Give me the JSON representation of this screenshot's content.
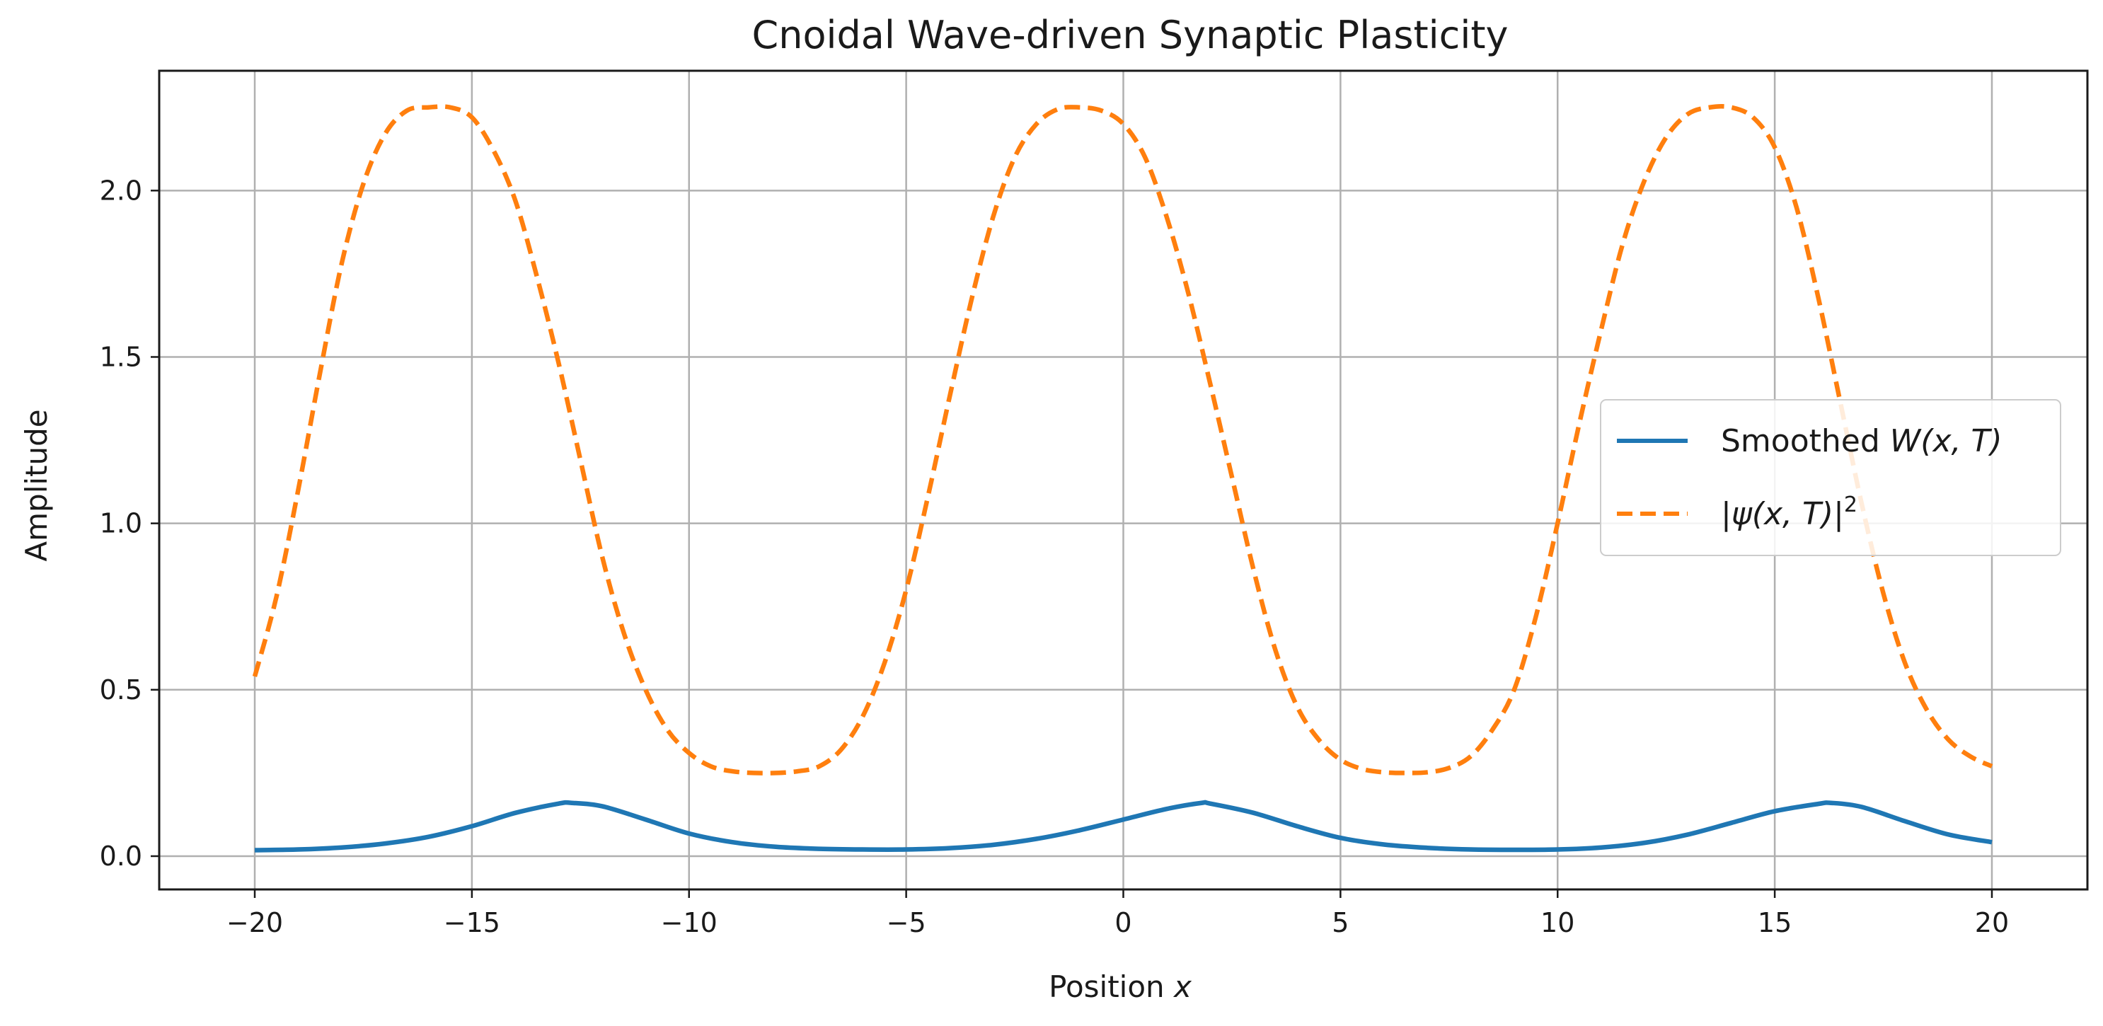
{
  "chart_data": {
    "type": "line",
    "title": "Cnoidal Wave-driven Synaptic Plasticity",
    "xlabel_text": "Position ",
    "xlabel_var": "x",
    "ylabel": "Amplitude",
    "xlim": [
      -22.2,
      22.2
    ],
    "ylim": [
      -0.1,
      2.36
    ],
    "xticks": [
      -20,
      -15,
      -10,
      -5,
      0,
      5,
      10,
      15,
      20
    ],
    "xtick_labels": [
      "−20",
      "−15",
      "−10",
      "−5",
      "0",
      "5",
      "10",
      "15",
      "20"
    ],
    "yticks": [
      0.0,
      0.5,
      1.0,
      1.5,
      2.0
    ],
    "ytick_labels": [
      "0.0",
      "0.5",
      "1.0",
      "1.5",
      "2.0"
    ],
    "grid": true,
    "legend_position": "center-right",
    "series": [
      {
        "name": "Smoothed W(x, T)",
        "legend_prefix": "Smoothed ",
        "legend_math": "W(x, T)",
        "color": "#1f77b4",
        "style": "solid",
        "x": [
          -20,
          -19,
          -18,
          -17,
          -16,
          -15,
          -14,
          -13,
          -12.7,
          -12,
          -11,
          -10,
          -9,
          -8,
          -7,
          -6,
          -5,
          -4,
          -3,
          -2,
          -1,
          0,
          1,
          1.8,
          2,
          3,
          4,
          5,
          6,
          7,
          8,
          9,
          10,
          11,
          12,
          13,
          14,
          15,
          16,
          16.3,
          17,
          18,
          19,
          20
        ],
        "values": [
          0.018,
          0.02,
          0.026,
          0.038,
          0.058,
          0.09,
          0.13,
          0.158,
          0.16,
          0.15,
          0.11,
          0.068,
          0.042,
          0.028,
          0.022,
          0.02,
          0.02,
          0.024,
          0.034,
          0.052,
          0.078,
          0.11,
          0.142,
          0.16,
          0.158,
          0.13,
          0.09,
          0.055,
          0.035,
          0.025,
          0.02,
          0.019,
          0.02,
          0.026,
          0.04,
          0.065,
          0.1,
          0.135,
          0.157,
          0.16,
          0.148,
          0.105,
          0.065,
          0.042
        ]
      },
      {
        "name": "|ψ(x, T)|²",
        "legend_math": "|ψ(x, T)|",
        "legend_sup": "2",
        "color": "#ff7f0e",
        "style": "dashed",
        "x": [
          -20,
          -19.5,
          -19,
          -18.5,
          -18,
          -17.5,
          -17,
          -16.5,
          -16,
          -15.5,
          -15,
          -14.5,
          -14,
          -13.5,
          -13,
          -12.5,
          -12,
          -11.5,
          -11,
          -10.5,
          -10,
          -9.5,
          -9,
          -8.5,
          -8,
          -7.5,
          -7,
          -6.5,
          -6,
          -5.5,
          -5,
          -4.5,
          -4,
          -3.5,
          -3,
          -2.5,
          -2,
          -1.5,
          -1,
          -0.5,
          0,
          0.5,
          1,
          1.5,
          2,
          2.5,
          3,
          3.5,
          4,
          4.5,
          5,
          5.5,
          6,
          6.5,
          7,
          7.5,
          8,
          8.5,
          9,
          9.5,
          10,
          10.5,
          11,
          11.5,
          12,
          12.5,
          13,
          13.5,
          14,
          14.5,
          15,
          15.5,
          16,
          16.5,
          17,
          17.5,
          18,
          18.5,
          19,
          19.5,
          20
        ],
        "values": [
          0.54,
          0.78,
          1.1,
          1.45,
          1.78,
          2.02,
          2.17,
          2.24,
          2.25,
          2.25,
          2.22,
          2.12,
          1.97,
          1.74,
          1.48,
          1.19,
          0.9,
          0.67,
          0.5,
          0.38,
          0.31,
          0.27,
          0.255,
          0.25,
          0.25,
          0.255,
          0.27,
          0.32,
          0.42,
          0.58,
          0.8,
          1.08,
          1.38,
          1.67,
          1.92,
          2.1,
          2.2,
          2.245,
          2.25,
          2.24,
          2.2,
          2.1,
          1.92,
          1.69,
          1.42,
          1.14,
          0.86,
          0.62,
          0.45,
          0.35,
          0.29,
          0.262,
          0.252,
          0.25,
          0.252,
          0.265,
          0.3,
          0.38,
          0.5,
          0.72,
          1.0,
          1.3,
          1.58,
          1.84,
          2.03,
          2.16,
          2.23,
          2.25,
          2.25,
          2.22,
          2.13,
          1.95,
          1.68,
          1.37,
          1.06,
          0.79,
          0.58,
          0.44,
          0.35,
          0.3,
          0.27
        ]
      }
    ]
  }
}
